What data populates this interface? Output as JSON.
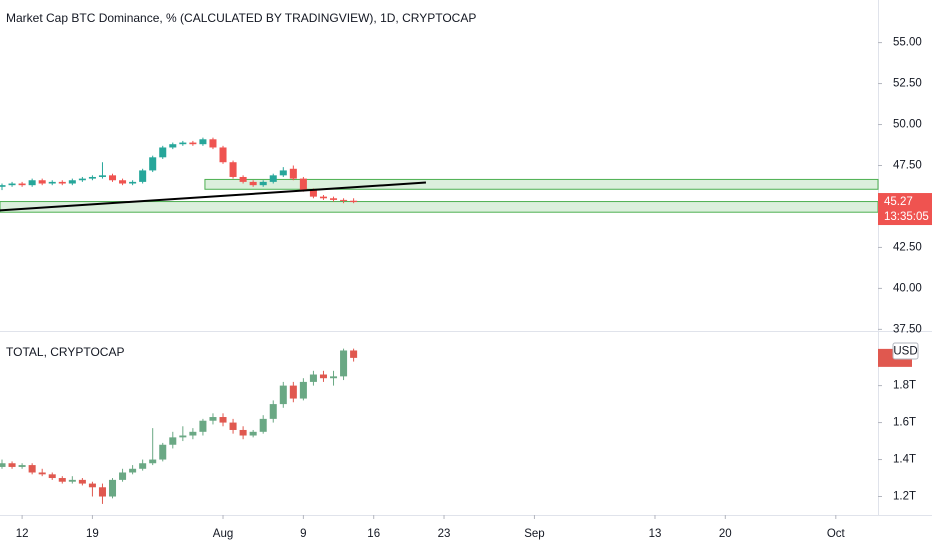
{
  "chart_data": [
    {
      "type": "candlestick",
      "title": "Market Cap BTC Dominance, % (CALCULATED BY TRADINGVIEW), 1D, CRYPTOCAP",
      "x": [
        0,
        1,
        2,
        3,
        4,
        5,
        6,
        7,
        8,
        9,
        10,
        11,
        12,
        13,
        14,
        15,
        16,
        17,
        18,
        19,
        20,
        21,
        22,
        23,
        24,
        25,
        26,
        27,
        28,
        29,
        30,
        31,
        32,
        33,
        34,
        35
      ],
      "open": [
        46.2,
        46.3,
        46.4,
        46.3,
        46.6,
        46.4,
        46.5,
        46.4,
        46.6,
        46.7,
        46.8,
        46.9,
        46.6,
        46.4,
        46.5,
        47.2,
        48.0,
        48.6,
        48.8,
        48.9,
        48.8,
        49.1,
        48.6,
        47.7,
        46.8,
        46.5,
        46.3,
        46.5,
        46.9,
        47.3,
        46.7,
        46.0,
        45.6,
        45.5,
        45.4,
        45.35
      ],
      "high": [
        46.4,
        46.5,
        46.5,
        46.7,
        46.7,
        46.6,
        46.6,
        46.7,
        46.8,
        46.9,
        47.7,
        47.0,
        46.7,
        46.6,
        47.3,
        48.1,
        48.7,
        48.9,
        49.0,
        49.0,
        49.2,
        49.2,
        48.7,
        47.8,
        46.9,
        46.6,
        46.6,
        47.0,
        47.4,
        47.5,
        46.8,
        46.1,
        45.7,
        45.6,
        45.5,
        45.5
      ],
      "low": [
        46.0,
        46.2,
        46.2,
        46.2,
        46.3,
        46.3,
        46.3,
        46.3,
        46.5,
        46.6,
        46.7,
        46.5,
        46.3,
        46.3,
        46.4,
        47.1,
        47.9,
        48.5,
        48.7,
        48.7,
        48.7,
        48.5,
        47.6,
        46.7,
        46.4,
        46.2,
        46.2,
        46.4,
        46.8,
        46.6,
        45.9,
        45.5,
        45.4,
        45.3,
        45.2,
        45.2
      ],
      "close": [
        46.3,
        46.4,
        46.3,
        46.6,
        46.4,
        46.5,
        46.4,
        46.6,
        46.7,
        46.8,
        46.9,
        46.6,
        46.4,
        46.5,
        47.2,
        48.0,
        48.6,
        48.8,
        48.9,
        48.8,
        49.1,
        48.6,
        47.7,
        46.8,
        46.5,
        46.3,
        46.5,
        46.9,
        47.2,
        46.7,
        46.0,
        45.6,
        45.5,
        45.4,
        45.35,
        45.27
      ],
      "up_color": "#26a69a",
      "down_color": "#ef5350",
      "xlim": [
        -0.2,
        87.2
      ],
      "ylim": [
        37.4,
        57.6
      ],
      "yticks": [
        {
          "value": 37.5,
          "label": "37.50"
        },
        {
          "value": 40,
          "label": "40.00"
        },
        {
          "value": 42.5,
          "label": "42.50"
        },
        {
          "value": 47.5,
          "label": "47.50"
        },
        {
          "value": 50,
          "label": "50.00"
        },
        {
          "value": 52.5,
          "label": "52.50"
        },
        {
          "value": 55,
          "label": "55.00"
        }
      ],
      "zones": [
        {
          "x": [
            20.2,
            87.2
          ],
          "y": [
            46.05,
            46.65
          ]
        },
        {
          "x": [
            -0.2,
            87.2
          ],
          "y": [
            44.65,
            45.3
          ]
        }
      ],
      "zone_color": "#4caf50",
      "trendline": {
        "x": [
          -0.2,
          42.2
        ],
        "y": [
          44.76,
          46.46
        ]
      },
      "last_price": 45.27,
      "countdown": "13:35:05"
    },
    {
      "type": "candlestick",
      "title": "TOTAL, CRYPTOCAP",
      "x": [
        0,
        1,
        2,
        3,
        4,
        5,
        6,
        7,
        8,
        9,
        10,
        11,
        12,
        13,
        14,
        15,
        16,
        17,
        18,
        19,
        20,
        21,
        22,
        23,
        24,
        25,
        26,
        27,
        28,
        29,
        30,
        31,
        32,
        33,
        34,
        35
      ],
      "open": [
        1.36,
        1.38,
        1.36,
        1.37,
        1.33,
        1.32,
        1.3,
        1.28,
        1.29,
        1.27,
        1.25,
        1.2,
        1.29,
        1.33,
        1.35,
        1.38,
        1.4,
        1.48,
        1.52,
        1.53,
        1.55,
        1.61,
        1.63,
        1.6,
        1.56,
        1.53,
        1.55,
        1.62,
        1.7,
        1.8,
        1.73,
        1.82,
        1.86,
        1.84,
        1.85,
        1.99
      ],
      "high": [
        1.4,
        1.39,
        1.38,
        1.38,
        1.35,
        1.33,
        1.31,
        1.31,
        1.3,
        1.28,
        1.27,
        1.3,
        1.35,
        1.37,
        1.4,
        1.57,
        1.49,
        1.55,
        1.58,
        1.57,
        1.62,
        1.65,
        1.65,
        1.62,
        1.58,
        1.56,
        1.64,
        1.72,
        1.82,
        1.82,
        1.84,
        1.88,
        1.88,
        1.88,
        2.0,
        2.0
      ],
      "low": [
        1.35,
        1.35,
        1.35,
        1.32,
        1.31,
        1.29,
        1.27,
        1.27,
        1.26,
        1.2,
        1.16,
        1.19,
        1.28,
        1.32,
        1.34,
        1.37,
        1.39,
        1.46,
        1.5,
        1.51,
        1.53,
        1.59,
        1.58,
        1.54,
        1.51,
        1.52,
        1.54,
        1.6,
        1.68,
        1.71,
        1.72,
        1.8,
        1.82,
        1.8,
        1.83,
        1.93
      ],
      "close": [
        1.38,
        1.36,
        1.37,
        1.33,
        1.32,
        1.3,
        1.28,
        1.29,
        1.27,
        1.25,
        1.2,
        1.29,
        1.33,
        1.35,
        1.38,
        1.4,
        1.48,
        1.52,
        1.53,
        1.55,
        1.61,
        1.63,
        1.6,
        1.56,
        1.53,
        1.55,
        1.62,
        1.7,
        1.8,
        1.73,
        1.82,
        1.86,
        1.84,
        1.85,
        1.99,
        1.95
      ],
      "up_color": "#6aa884",
      "down_color": "#e0584f",
      "xlim": [
        -0.2,
        87.2
      ],
      "ylim": [
        1.1,
        2.09
      ],
      "yticks": [
        {
          "value": 1.2,
          "label": "1.2T"
        },
        {
          "value": 1.4,
          "label": "1.4T"
        },
        {
          "value": 1.6,
          "label": "1.6T"
        },
        {
          "value": 1.8,
          "label": "1.8T"
        }
      ],
      "currency": "USD",
      "xticks": [
        {
          "value": 2,
          "label": "12"
        },
        {
          "value": 9,
          "label": "19"
        },
        {
          "value": 22,
          "label": "Aug"
        },
        {
          "value": 30,
          "label": "9"
        },
        {
          "value": 37,
          "label": "16"
        },
        {
          "value": 44,
          "label": "23"
        },
        {
          "value": 53,
          "label": "Sep"
        },
        {
          "value": 65,
          "label": "13"
        },
        {
          "value": 72,
          "label": "20"
        },
        {
          "value": 83,
          "label": "Oct"
        }
      ]
    }
  ]
}
